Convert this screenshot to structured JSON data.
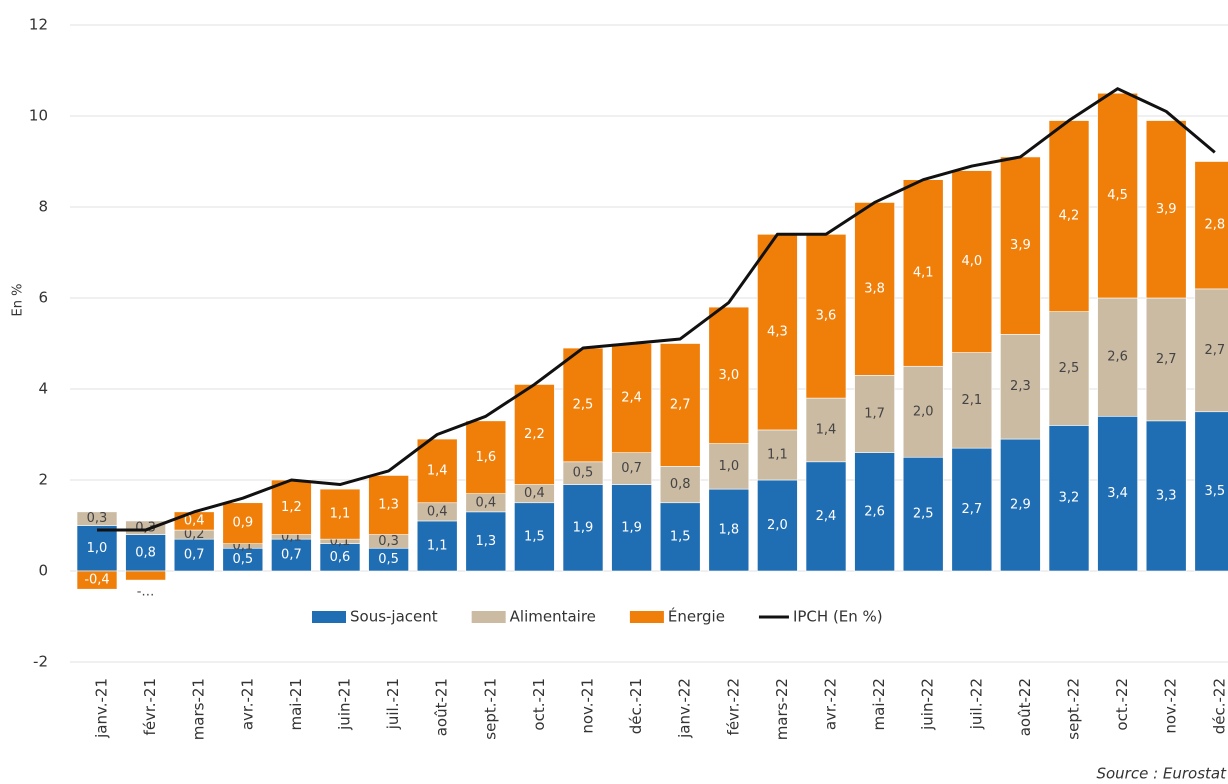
{
  "chart_data": {
    "type": "bar",
    "stacked": true,
    "y_label": "En %",
    "source": "Source : Eurostat",
    "categories": [
      "janv.-21",
      "févr.-21",
      "mars-21",
      "avr.-21",
      "mai-21",
      "juin-21",
      "juil.-21",
      "août-21",
      "sept.-21",
      "oct.-21",
      "nov.-21",
      "déc.-21",
      "janv.-22",
      "févr.-22",
      "mars-22",
      "avr.-22",
      "mai-22",
      "juin-22",
      "juil.-22",
      "août-22",
      "sept.-22",
      "oct.-22",
      "nov.-22",
      "déc.-22"
    ],
    "series": [
      {
        "name": "Sous-jacent",
        "color": "#1f6db3",
        "values": [
          1.0,
          0.8,
          0.7,
          0.5,
          0.7,
          0.6,
          0.5,
          1.1,
          1.3,
          1.5,
          1.9,
          1.9,
          1.5,
          1.8,
          2.0,
          2.4,
          2.6,
          2.5,
          2.7,
          2.9,
          3.2,
          3.4,
          3.3,
          3.5
        ],
        "value_labels": [
          "1,0",
          "0,8",
          "0,7",
          "0,5",
          "0,7",
          "0,6",
          "0,5",
          "1,1",
          "1,3",
          "1,5",
          "1,9",
          "1,9",
          "1,5",
          "1,8",
          "2,0",
          "2,4",
          "2,6",
          "2,5",
          "2,7",
          "2,9",
          "3,2",
          "3,4",
          "3,3",
          "3,5"
        ]
      },
      {
        "name": "Alimentaire",
        "color": "#cbbba3",
        "values": [
          0.3,
          0.3,
          0.2,
          0.1,
          0.1,
          0.1,
          0.3,
          0.4,
          0.4,
          0.4,
          0.5,
          0.7,
          0.8,
          1.0,
          1.1,
          1.4,
          1.7,
          2.0,
          2.1,
          2.3,
          2.5,
          2.6,
          2.7,
          2.7
        ],
        "value_labels": [
          "0,3",
          "0,3",
          "0,2",
          "0,1",
          "0,1",
          "0,1",
          "0,3",
          "0,4",
          "0,4",
          "0,4",
          "0,5",
          "0,7",
          "0,8",
          "1,0",
          "1,1",
          "1,4",
          "1,7",
          "2,0",
          "2,1",
          "2,3",
          "2,5",
          "2,6",
          "2,7",
          "2,7"
        ]
      },
      {
        "name": "Énergie",
        "color": "#f07f0a",
        "values": [
          -0.4,
          -0.2,
          0.4,
          0.9,
          1.2,
          1.1,
          1.3,
          1.4,
          1.6,
          2.2,
          2.5,
          2.4,
          2.7,
          3.0,
          4.3,
          3.6,
          3.8,
          4.1,
          4.0,
          3.9,
          4.2,
          4.5,
          3.9,
          2.8
        ],
        "value_labels": [
          "-0,4",
          "-…",
          "0,4",
          "0,9",
          "1,2",
          "1,1",
          "1,3",
          "1,4",
          "1,6",
          "2,2",
          "2,5",
          "2,4",
          "2,7",
          "3,0",
          "4,3",
          "3,6",
          "3,8",
          "4,1",
          "4,0",
          "3,9",
          "4,2",
          "4,5",
          "3,9",
          "2,8"
        ]
      },
      {
        "name": "IPCH (En %)",
        "type": "line",
        "color": "#111111",
        "values": [
          0.9,
          0.9,
          1.3,
          1.6,
          2.0,
          1.9,
          2.2,
          3.0,
          3.4,
          4.1,
          4.9,
          5.0,
          5.1,
          5.9,
          7.4,
          7.4,
          8.1,
          8.6,
          8.9,
          9.1,
          9.9,
          10.6,
          10.1,
          9.2
        ]
      }
    ],
    "ylim": [
      -2,
      12
    ],
    "yticks": [
      -2,
      0,
      2,
      4,
      6,
      8,
      10,
      12
    ],
    "grid": true,
    "legend": "bottom"
  }
}
